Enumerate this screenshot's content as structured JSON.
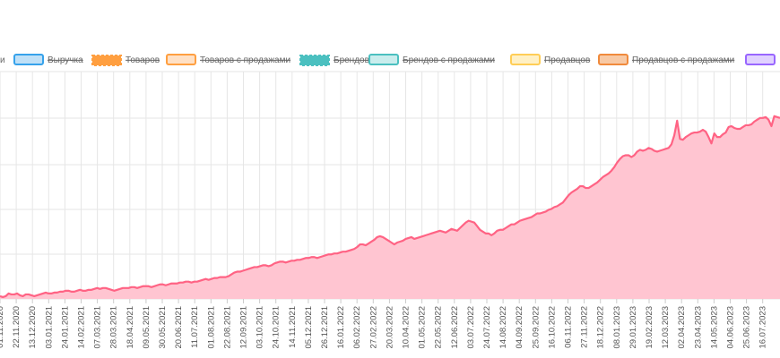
{
  "chart_data": {
    "type": "area",
    "grid": true,
    "legend": {
      "placement": "top",
      "items": [
        {
          "label": "и",
          "color": "#b0b0b0",
          "style": "plain",
          "hidden": false,
          "cut": true
        },
        {
          "label": "Выручка",
          "color": "#36a2eb",
          "fill": "#bfe0f7",
          "style": "box",
          "hidden": true
        },
        {
          "label": "Товаров",
          "color": "#ff9f40",
          "fill": "#ff9f40",
          "style": "wavy",
          "hidden": true
        },
        {
          "label": "Товаров с продажами",
          "color": "#ff9f40",
          "fill": "#ffe0c4",
          "style": "box",
          "hidden": true
        },
        {
          "label": "Брендов",
          "color": "#4bc0c0",
          "fill": "#4bc0c0",
          "style": "wavy",
          "hidden": true
        },
        {
          "label": "Брендов с продажами",
          "color": "#4bc0c0",
          "fill": "#c9eded",
          "style": "box",
          "hidden": true
        },
        {
          "label": "Продавцов",
          "color": "#ffcd56",
          "fill": "#fff0c4",
          "style": "box",
          "hidden": true
        },
        {
          "label": "Продавцов с продажами",
          "color": "#f08a3c",
          "fill": "#f8c9a4",
          "style": "box",
          "hidden": true
        },
        {
          "label": "",
          "color": "#9966ff",
          "fill": "#e0d1ff",
          "style": "box",
          "hidden": false
        }
      ]
    },
    "x_labels": [
      "01.11.2020",
      "22.11.2020",
      "13.12.2020",
      "03.01.2021",
      "24.01.2021",
      "14.02.2021",
      "07.03.2021",
      "28.03.2021",
      "18.04.2021",
      "09.05.2021",
      "30.05.2021",
      "20.06.2021",
      "11.07.2021",
      "01.08.2021",
      "22.08.2021",
      "12.09.2021",
      "03.10.2021",
      "24.10.2021",
      "14.11.2021",
      "05.12.2021",
      "26.12.2021",
      "16.01.2022",
      "06.02.2022",
      "27.02.2022",
      "20.03.2022",
      "10.04.2022",
      "01.05.2022",
      "22.05.2022",
      "12.06.2022",
      "03.07.2022",
      "24.07.2022",
      "14.08.2022",
      "04.09.2022",
      "25.09.2022",
      "16.10.2022",
      "06.11.2022",
      "27.11.2022",
      "18.12.2022",
      "08.01.2023",
      "29.01.2023",
      "19.02.2023",
      "12.03.2023",
      "02.04.2023",
      "23.04.2023",
      "14.05.2023",
      "04.06.2023",
      "25.06.2023",
      "16.07.2023"
    ],
    "series": [
      {
        "color": "#ff6384",
        "fill": "#ffc5d1",
        "values": [
          3,
          2,
          3,
          6,
          5,
          5,
          6,
          4,
          3,
          5,
          5,
          4,
          3,
          4,
          5,
          6,
          7,
          6,
          6,
          7,
          7,
          8,
          8,
          9,
          9,
          8,
          8,
          9,
          10,
          9,
          9,
          10,
          10,
          11,
          12,
          11,
          12,
          12,
          11,
          10,
          9,
          10,
          11,
          12,
          12,
          12,
          13,
          13,
          12,
          13,
          14,
          14,
          14,
          13,
          14,
          15,
          16,
          16,
          15,
          16,
          17,
          17,
          17,
          18,
          18,
          19,
          19,
          18,
          19,
          19,
          20,
          21,
          22,
          21,
          22,
          23,
          23,
          24,
          24,
          24,
          25,
          27,
          29,
          30,
          30,
          31,
          32,
          33,
          34,
          35,
          35,
          36,
          37,
          37,
          36,
          37,
          39,
          40,
          41,
          41,
          40,
          41,
          42,
          42,
          43,
          43,
          44,
          45,
          45,
          46,
          46,
          45,
          46,
          47,
          48,
          49,
          49,
          50,
          50,
          51,
          52,
          52,
          53,
          54,
          55,
          57,
          60,
          60,
          59,
          61,
          63,
          65,
          68,
          69,
          68,
          66,
          64,
          62,
          60,
          62,
          63,
          64,
          66,
          67,
          68,
          66,
          67,
          68,
          69,
          70,
          71,
          72,
          73,
          74,
          75,
          74,
          73,
          75,
          77,
          76,
          75,
          78,
          81,
          84,
          86,
          85,
          84,
          80,
          76,
          74,
          72,
          72,
          70,
          72,
          75,
          76,
          76,
          78,
          80,
          82,
          82,
          84,
          86,
          87,
          88,
          89,
          90,
          92,
          94,
          94,
          95,
          96,
          98,
          99,
          101,
          102,
          104,
          106,
          110,
          114,
          117,
          119,
          121,
          124,
          124,
          122,
          122,
          124,
          126,
          128,
          131,
          134,
          136,
          138,
          141,
          145,
          150,
          154,
          157,
          158,
          158,
          156,
          158,
          162,
          164,
          163,
          164,
          166,
          165,
          163,
          162,
          163,
          164,
          165,
          166,
          170,
          180,
          196,
          176,
          175,
          178,
          180,
          182,
          183,
          183,
          184,
          186,
          184,
          178,
          171,
          182,
          178,
          178,
          181,
          183,
          189,
          190,
          188,
          187,
          187,
          189,
          191,
          191,
          192,
          195,
          197,
          199,
          199,
          200,
          197,
          190,
          201,
          200,
          199
        ]
      }
    ],
    "ylim": [
      0,
      250
    ]
  }
}
